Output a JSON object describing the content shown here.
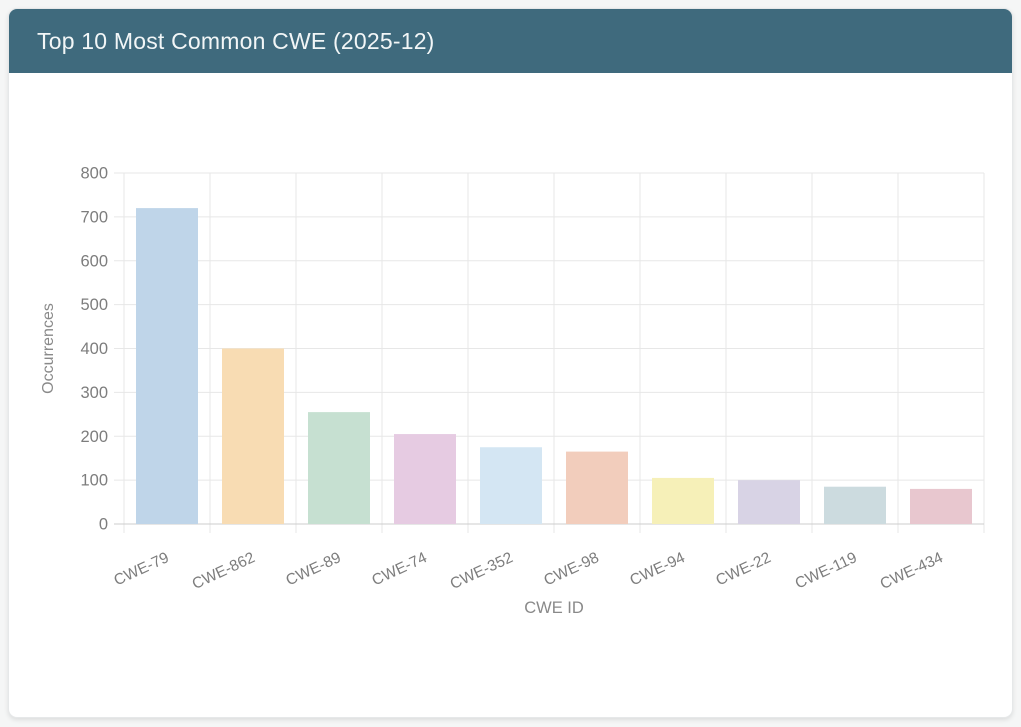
{
  "header": {
    "title": "Top 10 Most Common CWE (2025-12)"
  },
  "colors": {
    "header_bg": "#3f6a7d",
    "header_text": "#f2f6f7",
    "card_bg": "#ffffff",
    "page_bg": "#f5f6f6",
    "gridline": "#e7e7e7",
    "zero_axis_line": "#cdcdcd",
    "tick_label_text": "#7d7d7d",
    "axis_title_text": "#898989"
  },
  "chart_data": {
    "type": "bar",
    "title": "Top 10 Most Common CWE (2025-12)",
    "categories": [
      "CWE-79",
      "CWE-862",
      "CWE-89",
      "CWE-74",
      "CWE-352",
      "CWE-98",
      "CWE-94",
      "CWE-22",
      "CWE-119",
      "CWE-434"
    ],
    "values": [
      720,
      400,
      255,
      205,
      175,
      165,
      105,
      100,
      85,
      80
    ],
    "bar_colors": [
      "#bfd5e9",
      "#f8dcb3",
      "#c6e0d1",
      "#e6cbe2",
      "#d4e6f3",
      "#f2cdbc",
      "#f6f0b8",
      "#d8d3e5",
      "#ccdbdf",
      "#e8c7cf"
    ],
    "xlabel": "CWE ID",
    "ylabel": "Occurrences",
    "ylim": [
      0,
      800
    ],
    "ytick_step": 100,
    "ytick_labels": [
      "0",
      "100",
      "200",
      "300",
      "400",
      "500",
      "600",
      "700",
      "800"
    ],
    "xtick_rotation_deg": -25,
    "grid": true,
    "legend_position": "none"
  }
}
